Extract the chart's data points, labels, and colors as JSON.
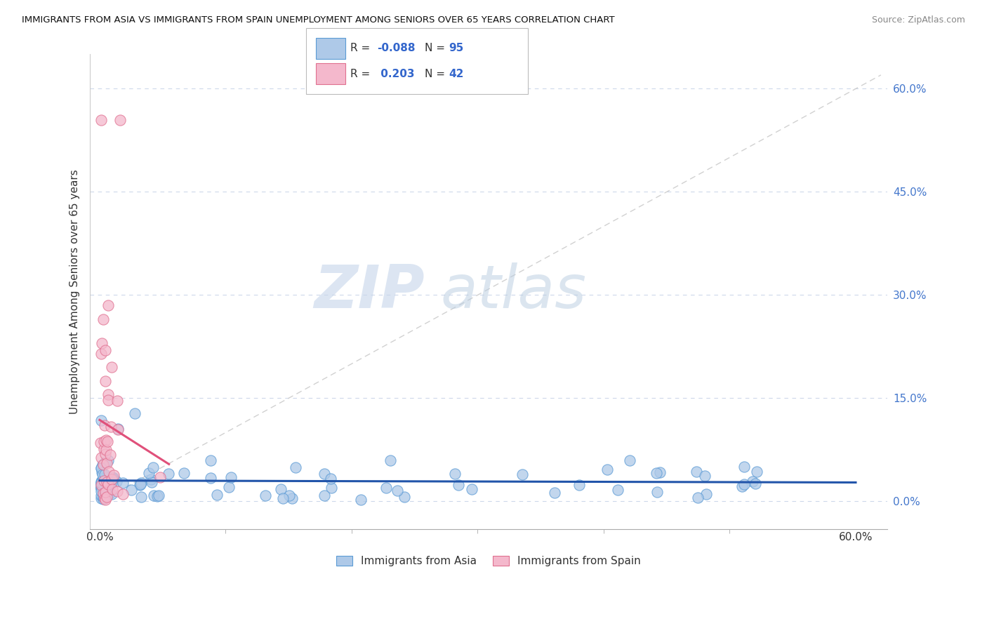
{
  "title": "IMMIGRANTS FROM ASIA VS IMMIGRANTS FROM SPAIN UNEMPLOYMENT AMONG SENIORS OVER 65 YEARS CORRELATION CHART",
  "source": "Source: ZipAtlas.com",
  "ylabel": "Unemployment Among Seniors over 65 years",
  "ytick_labels": [
    "0.0%",
    "15.0%",
    "30.0%",
    "45.0%",
    "60.0%"
  ],
  "ytick_vals": [
    0.0,
    0.15,
    0.3,
    0.45,
    0.6
  ],
  "xtick_labels": [
    "0.0%",
    "60.0%"
  ],
  "xtick_vals": [
    0.0,
    0.6
  ],
  "xlim": [
    -0.008,
    0.625
  ],
  "ylim": [
    -0.04,
    0.65
  ],
  "color_asia_fill": "#aec9e8",
  "color_asia_edge": "#5b9bd5",
  "color_trend_asia": "#2255aa",
  "color_spain_fill": "#f4b8cc",
  "color_spain_edge": "#e07090",
  "color_trend_spain": "#e0507a",
  "color_diagonal": "#cccccc",
  "color_grid": "#c8d4e8",
  "background_color": "#ffffff",
  "watermark1": "ZIP",
  "watermark2": "atlas",
  "legend_r1": "-0.088",
  "legend_n1": "95",
  "legend_r2": "0.203",
  "legend_n2": "42"
}
